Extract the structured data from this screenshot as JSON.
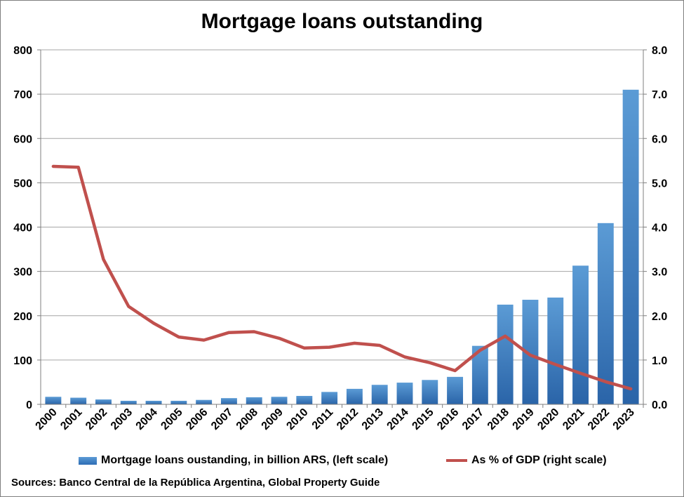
{
  "chart_data": {
    "type": "bar",
    "title": "Mortgage loans outstanding",
    "categories": [
      "2000",
      "2001",
      "2002",
      "2003",
      "2004",
      "2005",
      "2006",
      "2007",
      "2008",
      "2009",
      "2010",
      "2011",
      "2012",
      "2013",
      "2014",
      "2015",
      "2016",
      "2017",
      "2018",
      "2019",
      "2020",
      "2021",
      "2022",
      "2023"
    ],
    "series": [
      {
        "name": "Mortgage loans oustanding, in billion ARS, (left scale)",
        "type": "bar",
        "axis": "left",
        "values": [
          17,
          15,
          11,
          8,
          8,
          8,
          10,
          14,
          16,
          17,
          19,
          28,
          35,
          44,
          49,
          55,
          62,
          132,
          225,
          236,
          241,
          313,
          409,
          710
        ]
      },
      {
        "name": "As % of GDP (right scale)",
        "type": "line",
        "axis": "right",
        "values": [
          5.37,
          5.35,
          3.27,
          2.21,
          1.83,
          1.52,
          1.45,
          1.62,
          1.64,
          1.49,
          1.27,
          1.29,
          1.38,
          1.33,
          1.07,
          0.94,
          0.76,
          1.22,
          1.54,
          1.11,
          0.9,
          0.7,
          0.51,
          0.35
        ]
      }
    ],
    "ylim_left": [
      0,
      800
    ],
    "yticks_left": [
      "0",
      "100",
      "200",
      "300",
      "400",
      "500",
      "600",
      "700",
      "800"
    ],
    "ylim_right": [
      0,
      8
    ],
    "yticks_right": [
      "0.0",
      "1.0",
      "2.0",
      "3.0",
      "4.0",
      "5.0",
      "6.0",
      "7.0",
      "8.0"
    ],
    "grid": true,
    "legend": "bottom",
    "colors": {
      "bar": "#4a86c8",
      "line": "#c0504d"
    },
    "source": "Sources: Banco Central de la República Argentina, Global Property Guide"
  }
}
